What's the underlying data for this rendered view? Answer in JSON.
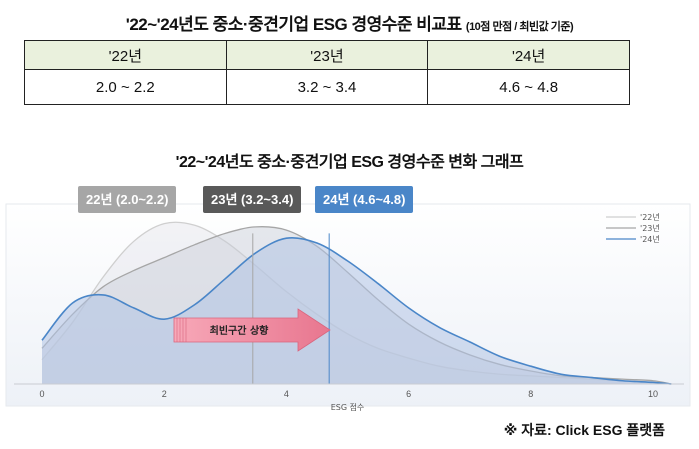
{
  "table": {
    "title": "'22~'24년도 중소·중견기업 ESG 경영수준 비교표",
    "note": "(10점 만점 / 최빈값 기준)",
    "headers": [
      "'22년",
      "'23년",
      "'24년"
    ],
    "values": [
      "2.0 ~ 2.2",
      "3.2 ~ 3.4",
      "4.6 ~ 4.8"
    ]
  },
  "chart_title": "'22~'24년도 중소·중견기업 ESG 경영수준 변화 그래프",
  "badges": [
    {
      "label": "22년 (2.0~2.2)",
      "color": "#a6a6a6"
    },
    {
      "label": "23년 (3.2~3.4)",
      "color": "#595959"
    },
    {
      "label": "24년 (4.6~4.8)",
      "color": "#4a86c8"
    }
  ],
  "arrow_label": "최빈구간 상향",
  "source": "※ 자료: Click ESG 플랫폼",
  "chart_data": {
    "type": "area",
    "xlabel": "ESG 점수",
    "ylabel": "",
    "xlim": [
      -0.5,
      10.5
    ],
    "xticks": [
      0,
      2,
      4,
      6,
      8,
      10
    ],
    "ylim": [
      0,
      1
    ],
    "legend": [
      "'22년",
      "'23년",
      "'24년"
    ],
    "legend_position": "top-right",
    "x": [
      0,
      0.5,
      1,
      1.5,
      2,
      2.5,
      3,
      3.5,
      4,
      4.5,
      5,
      5.5,
      6,
      6.5,
      7,
      7.5,
      8,
      8.5,
      9,
      9.5,
      10,
      10.3
    ],
    "series": [
      {
        "name": "'22년",
        "color": "#cfcfcf",
        "values": [
          0.15,
          0.38,
          0.66,
          0.88,
          0.99,
          0.98,
          0.88,
          0.73,
          0.57,
          0.43,
          0.31,
          0.22,
          0.16,
          0.11,
          0.08,
          0.06,
          0.05,
          0.04,
          0.03,
          0.02,
          0.01,
          0.0
        ]
      },
      {
        "name": "'23년",
        "color": "#a6a6a6",
        "values": [
          0.22,
          0.43,
          0.6,
          0.7,
          0.78,
          0.86,
          0.93,
          0.97,
          0.95,
          0.85,
          0.69,
          0.52,
          0.37,
          0.26,
          0.18,
          0.12,
          0.08,
          0.05,
          0.04,
          0.03,
          0.02,
          0.0
        ]
      },
      {
        "name": "'24년",
        "color": "#4a86c8",
        "values": [
          0.27,
          0.5,
          0.55,
          0.47,
          0.4,
          0.49,
          0.65,
          0.81,
          0.9,
          0.87,
          0.76,
          0.62,
          0.47,
          0.35,
          0.26,
          0.17,
          0.11,
          0.06,
          0.04,
          0.02,
          0.01,
          0.0
        ]
      }
    ],
    "reference_lines": [
      {
        "series": "'23년",
        "x": 3.45
      },
      {
        "series": "'24년",
        "x": 4.7
      }
    ]
  }
}
